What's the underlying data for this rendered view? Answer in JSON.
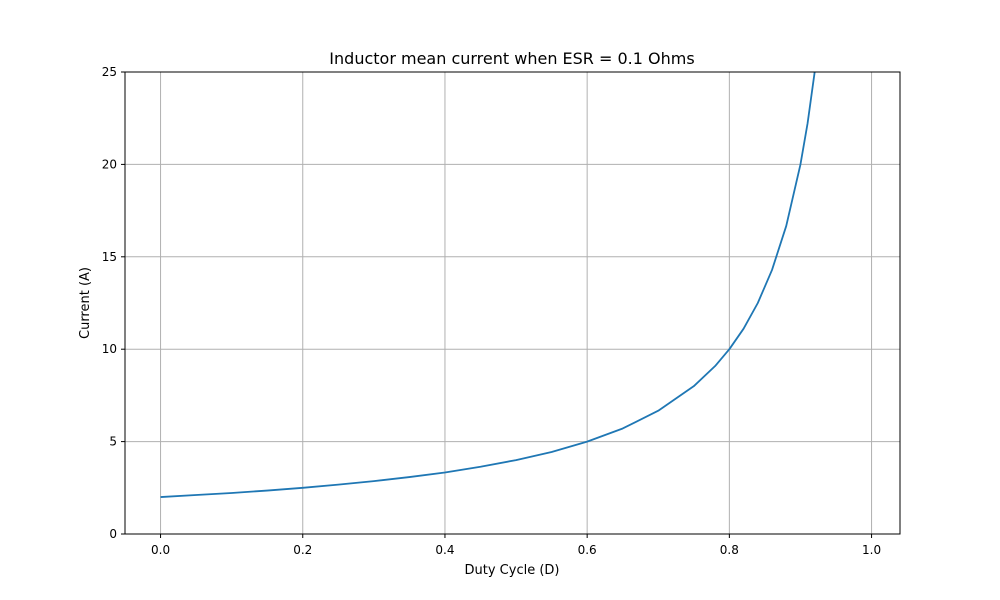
{
  "chart_data": {
    "type": "line",
    "title": "Inductor mean current when ESR = 0.1 Ohms",
    "xlabel": "Duty Cycle (D)",
    "ylabel": "Current (A)",
    "xlim": [
      -0.05,
      1.04
    ],
    "ylim": [
      0,
      25
    ],
    "xticks": [
      0.0,
      0.2,
      0.4,
      0.6,
      0.8,
      1.0
    ],
    "xtick_labels": [
      "0.0",
      "0.2",
      "0.4",
      "0.6",
      "0.8",
      "1.0"
    ],
    "yticks": [
      0,
      5,
      10,
      15,
      20,
      25
    ],
    "ytick_labels": [
      "0",
      "5",
      "10",
      "15",
      "20",
      "25"
    ],
    "grid": true,
    "legend": "none",
    "color": "#1f77b4",
    "series": [
      {
        "x": [
          0.0,
          0.05,
          0.1,
          0.15,
          0.2,
          0.25,
          0.3,
          0.35,
          0.4,
          0.45,
          0.5,
          0.55,
          0.6,
          0.65,
          0.7,
          0.75,
          0.78,
          0.8,
          0.82,
          0.84,
          0.86,
          0.88,
          0.9,
          0.91,
          0.92
        ],
        "values": [
          2.0,
          2.11,
          2.22,
          2.35,
          2.5,
          2.67,
          2.86,
          3.08,
          3.33,
          3.64,
          4.0,
          4.44,
          5.0,
          5.71,
          6.67,
          8.0,
          9.09,
          10.0,
          11.11,
          12.5,
          14.29,
          16.67,
          20.0,
          22.22,
          25.0
        ]
      }
    ]
  }
}
